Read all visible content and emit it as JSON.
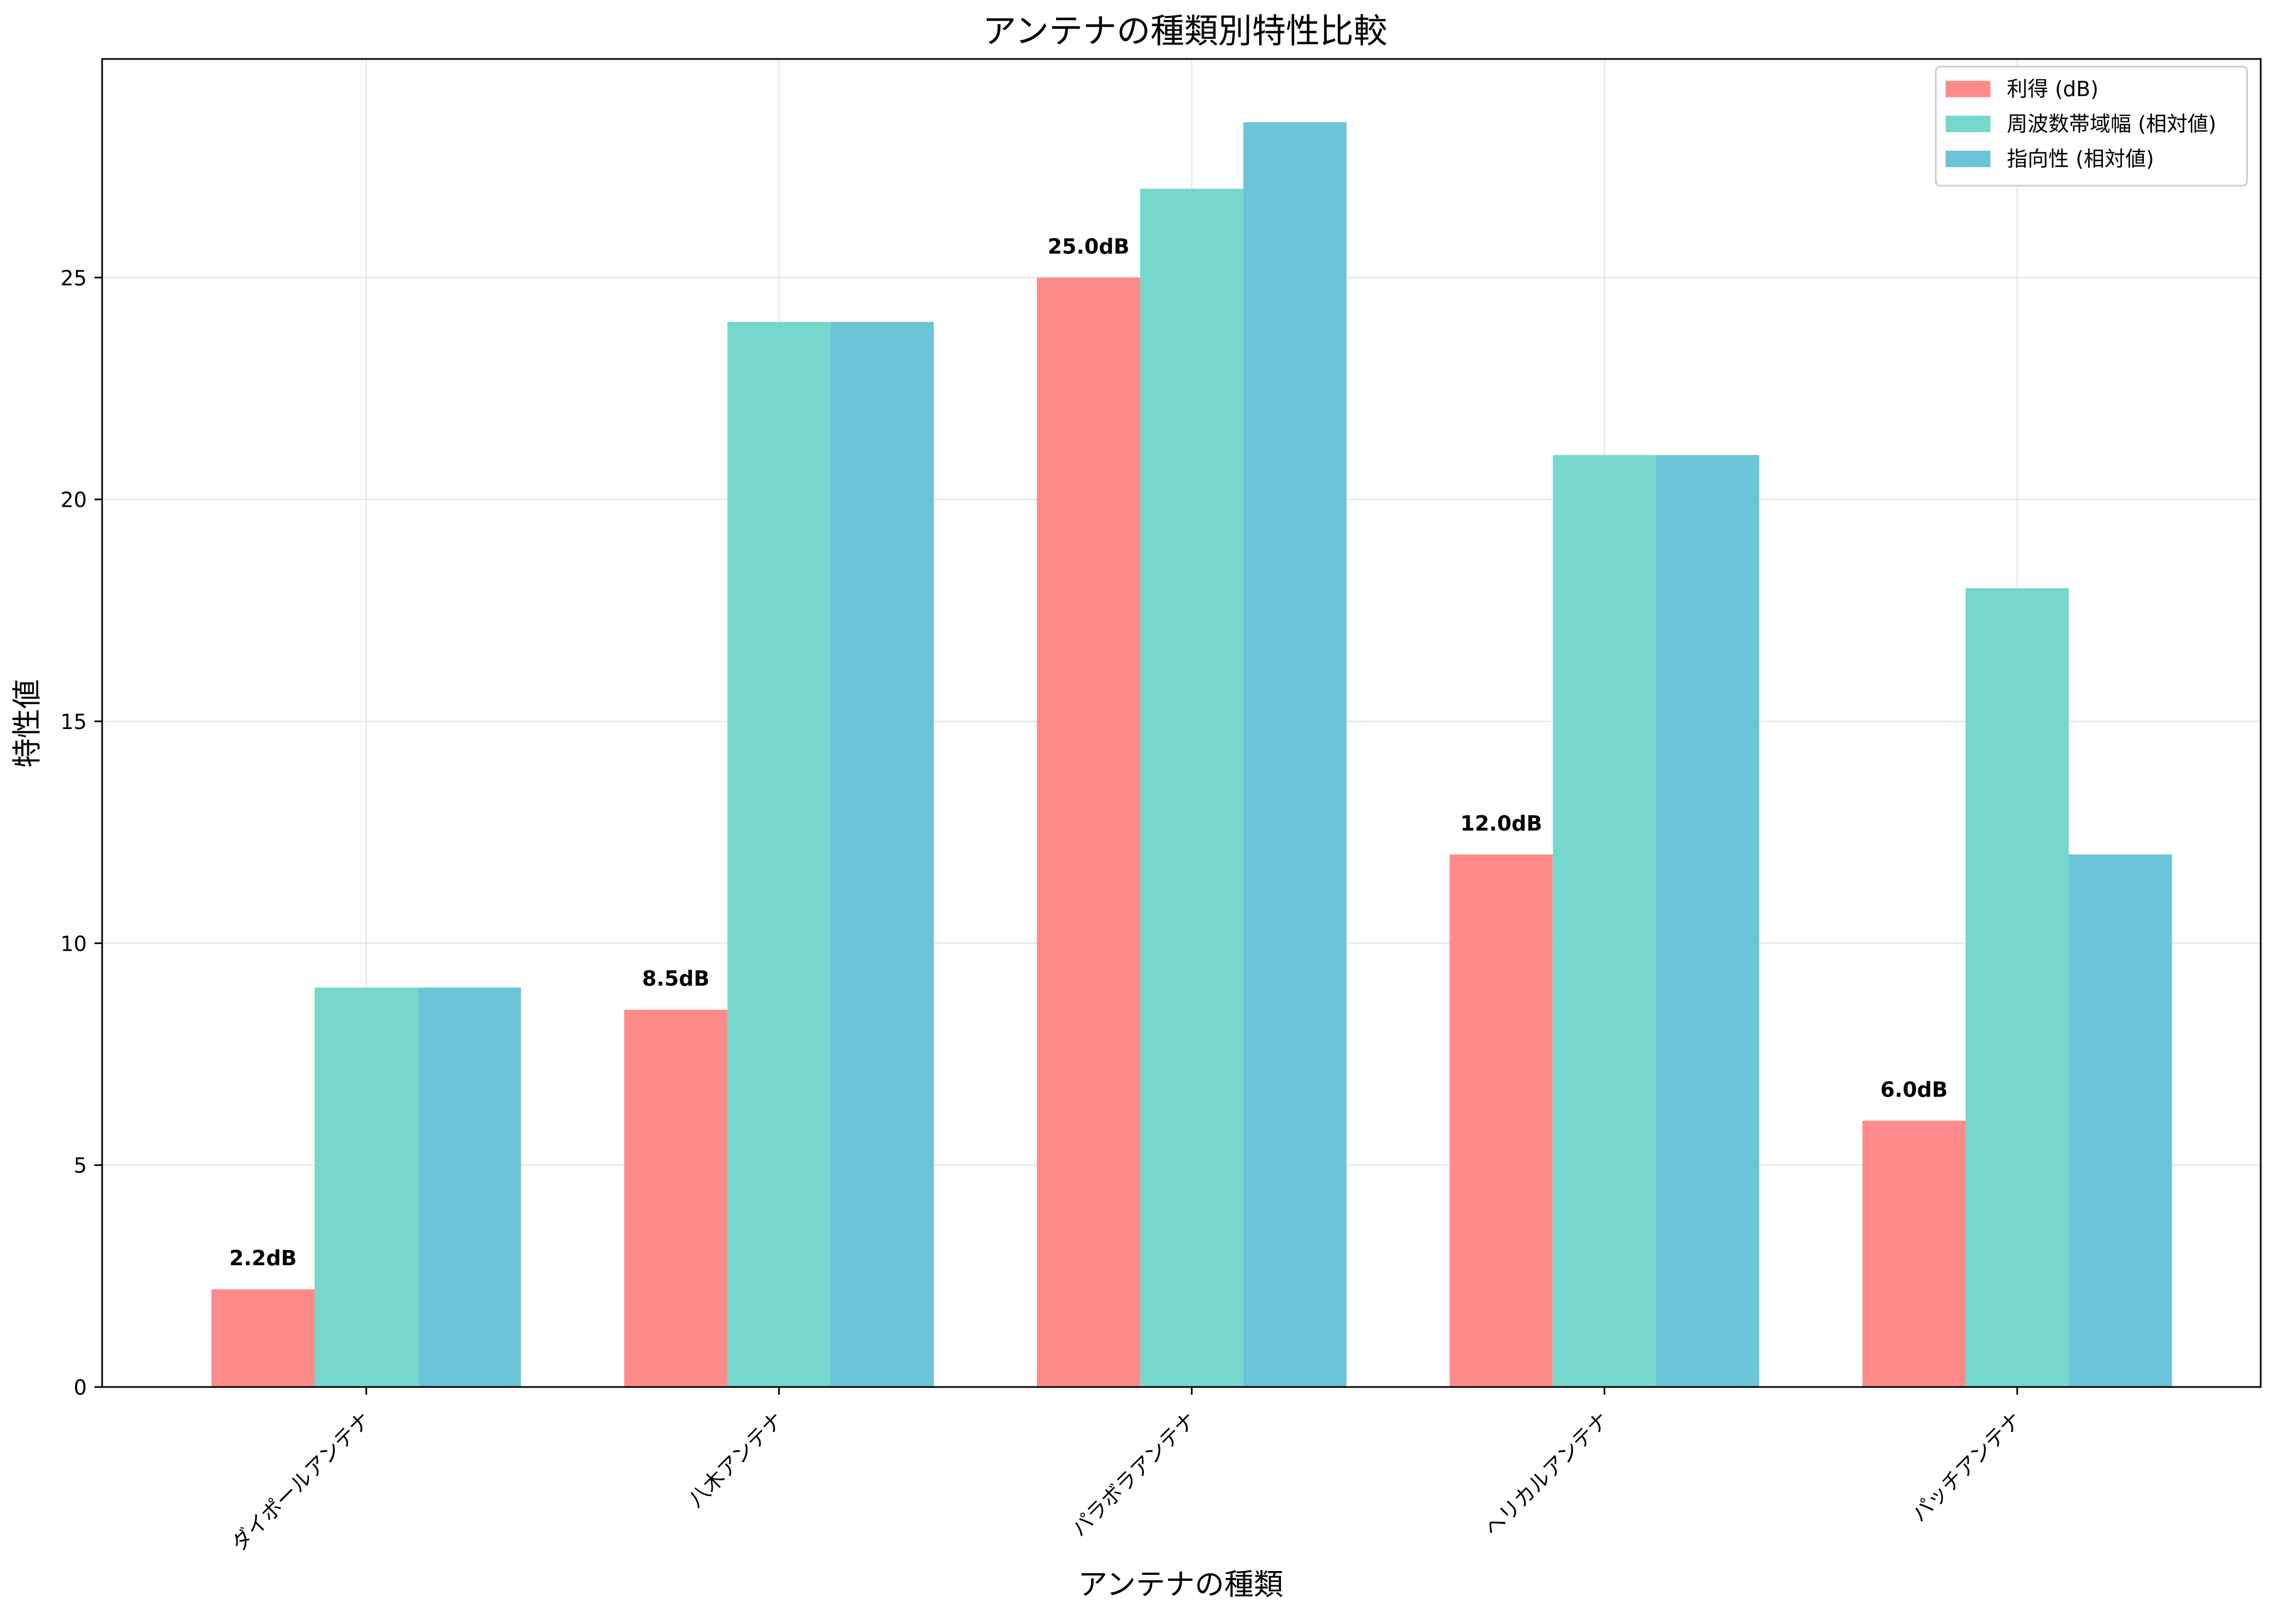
{
  "chart_data": {
    "type": "bar",
    "title": "アンテナの種類別特性比較",
    "xlabel": "アンテナの種類",
    "ylabel": "特性値",
    "categories": [
      "ダイポールアンテナ",
      "八木アンテナ",
      "パラボラアンテナ",
      "ヘリカルアンテナ",
      "パッチアンテナ"
    ],
    "series": [
      {
        "name": "利得 (dB)",
        "values": [
          2.2,
          8.5,
          25.0,
          12.0,
          6.0
        ],
        "color": "#FF8A8A"
      },
      {
        "name": "周波数帯域幅 (相対値)",
        "values": [
          9,
          24,
          27,
          21,
          18
        ],
        "color": "#76D7CD"
      },
      {
        "name": "指向性 (相対値)",
        "values": [
          9,
          24,
          28.5,
          21,
          12
        ],
        "color": "#6BC4D8"
      }
    ],
    "data_labels": [
      "2.2dB",
      "8.5dB",
      "25.0dB",
      "12.0dB",
      "6.0dB"
    ],
    "yticks": [
      0,
      5,
      10,
      15,
      20,
      25
    ],
    "ylim": [
      0,
      29.925
    ],
    "grid": true,
    "legend_position": "top-right"
  }
}
